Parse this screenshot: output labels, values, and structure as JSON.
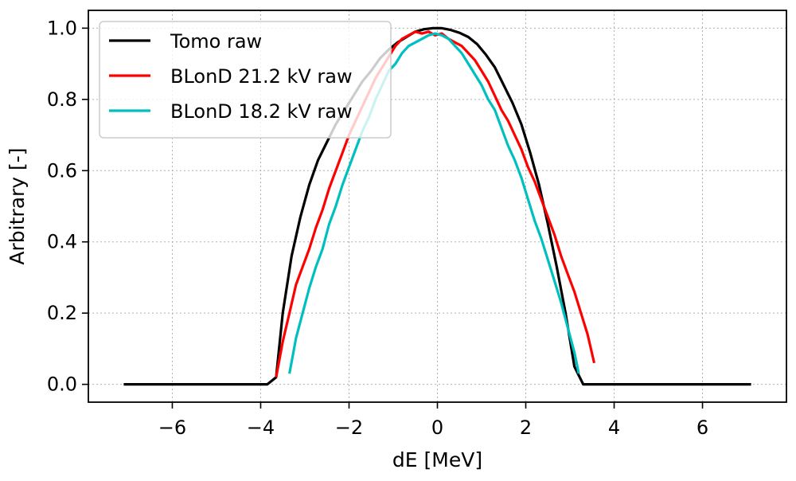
{
  "chart_data": {
    "type": "line",
    "title": "",
    "xlabel": "dE [MeV]",
    "ylabel": "Arbitrary [-]",
    "xlim": [
      -7.9,
      7.9
    ],
    "ylim": [
      -0.05,
      1.05
    ],
    "xticks": [
      -6,
      -4,
      -2,
      0,
      2,
      4,
      6
    ],
    "xtick_labels": [
      "−6",
      "−4",
      "−2",
      "0",
      "2",
      "4",
      "6"
    ],
    "yticks": [
      0.0,
      0.2,
      0.4,
      0.6,
      0.8,
      1.0
    ],
    "ytick_labels": [
      "0.0",
      "0.2",
      "0.4",
      "0.6",
      "0.8",
      "1.0"
    ],
    "grid": true,
    "legend_position": "upper-left",
    "series": [
      {
        "name": "Tomo raw",
        "color": "#000000",
        "x": [
          -7.1,
          -3.85,
          -3.65,
          -3.5,
          -3.3,
          -3.1,
          -2.9,
          -2.7,
          -2.5,
          -2.3,
          -2.1,
          -1.9,
          -1.7,
          -1.5,
          -1.3,
          -1.1,
          -0.9,
          -0.7,
          -0.5,
          -0.3,
          -0.1,
          0.1,
          0.3,
          0.5,
          0.7,
          0.9,
          1.1,
          1.3,
          1.5,
          1.7,
          1.9,
          2.1,
          2.3,
          2.5,
          2.7,
          2.9,
          3.1,
          3.3,
          3.5,
          3.65,
          3.85,
          7.1
        ],
        "y": [
          0.0,
          0.0,
          0.02,
          0.2,
          0.36,
          0.47,
          0.56,
          0.63,
          0.68,
          0.73,
          0.77,
          0.81,
          0.85,
          0.88,
          0.915,
          0.94,
          0.96,
          0.975,
          0.99,
          0.997,
          1.0,
          1.0,
          0.995,
          0.987,
          0.975,
          0.955,
          0.925,
          0.89,
          0.84,
          0.79,
          0.73,
          0.65,
          0.56,
          0.45,
          0.33,
          0.2,
          0.05,
          0.0,
          0.0,
          0.0,
          0.0,
          0.0
        ]
      },
      {
        "name": "BLonD 21.2 kV raw",
        "color": "#ff0000",
        "x": [
          -3.65,
          -3.5,
          -3.35,
          -3.2,
          -3.05,
          -2.9,
          -2.75,
          -2.6,
          -2.45,
          -2.3,
          -2.15,
          -2.0,
          -1.85,
          -1.7,
          -1.55,
          -1.4,
          -1.25,
          -1.1,
          -0.95,
          -0.8,
          -0.65,
          -0.5,
          -0.35,
          -0.2,
          -0.05,
          0.1,
          0.25,
          0.4,
          0.55,
          0.7,
          0.85,
          1.0,
          1.15,
          1.3,
          1.45,
          1.6,
          1.75,
          1.9,
          2.05,
          2.2,
          2.35,
          2.5,
          2.65,
          2.8,
          2.95,
          3.1,
          3.25,
          3.4,
          3.55
        ],
        "y": [
          0.02,
          0.12,
          0.2,
          0.28,
          0.33,
          0.38,
          0.44,
          0.49,
          0.55,
          0.6,
          0.65,
          0.7,
          0.74,
          0.78,
          0.82,
          0.86,
          0.89,
          0.92,
          0.95,
          0.97,
          0.98,
          0.99,
          0.985,
          0.99,
          0.98,
          0.985,
          0.97,
          0.96,
          0.95,
          0.93,
          0.91,
          0.88,
          0.85,
          0.81,
          0.77,
          0.74,
          0.7,
          0.66,
          0.61,
          0.57,
          0.52,
          0.47,
          0.42,
          0.36,
          0.31,
          0.26,
          0.2,
          0.14,
          0.06
        ]
      },
      {
        "name": "BLonD 18.2 kV raw",
        "color": "#00bfbf",
        "x": [
          -3.35,
          -3.2,
          -3.05,
          -2.9,
          -2.75,
          -2.6,
          -2.45,
          -2.3,
          -2.15,
          -2.0,
          -1.85,
          -1.7,
          -1.55,
          -1.4,
          -1.25,
          -1.1,
          -0.95,
          -0.8,
          -0.65,
          -0.5,
          -0.35,
          -0.2,
          -0.05,
          0.1,
          0.25,
          0.4,
          0.55,
          0.7,
          0.85,
          1.0,
          1.15,
          1.3,
          1.45,
          1.6,
          1.75,
          1.9,
          2.05,
          2.2,
          2.35,
          2.5,
          2.65,
          2.8,
          2.95,
          3.1,
          3.2
        ],
        "y": [
          0.03,
          0.13,
          0.2,
          0.27,
          0.33,
          0.38,
          0.45,
          0.5,
          0.56,
          0.61,
          0.66,
          0.71,
          0.75,
          0.8,
          0.84,
          0.88,
          0.9,
          0.93,
          0.95,
          0.96,
          0.97,
          0.98,
          0.985,
          0.98,
          0.97,
          0.95,
          0.93,
          0.9,
          0.87,
          0.84,
          0.8,
          0.77,
          0.72,
          0.67,
          0.63,
          0.58,
          0.52,
          0.46,
          0.41,
          0.35,
          0.29,
          0.23,
          0.16,
          0.09,
          0.03
        ]
      }
    ]
  }
}
